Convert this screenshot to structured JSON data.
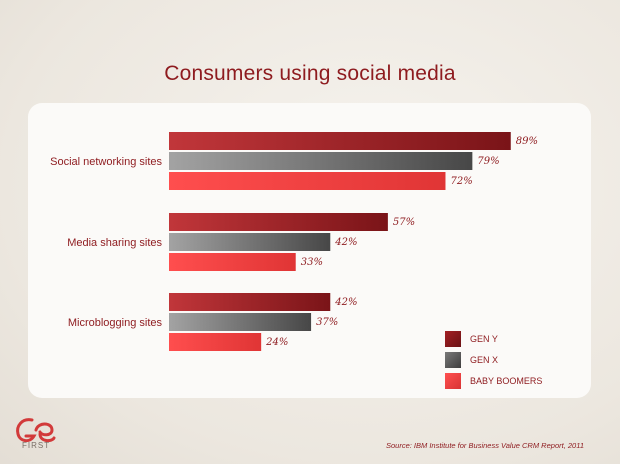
{
  "title": "Consumers using social media",
  "source": "Source: IBM Institute for Business Value CRM Report, 2011",
  "logo": {
    "text": "FIRST"
  },
  "chart_data": {
    "type": "bar",
    "orientation": "horizontal",
    "title": "Consumers using social media",
    "categories": [
      "Social networking sites",
      "Media sharing sites",
      "Microblogging sites"
    ],
    "series": [
      {
        "name": "GEN Y",
        "values": [
          89,
          57,
          42
        ],
        "labels": [
          "89%",
          "57%",
          "42%"
        ],
        "color": "#8e1b1f"
      },
      {
        "name": "GEN X",
        "values": [
          79,
          42,
          37
        ],
        "labels": [
          "79%",
          "42%",
          "37%"
        ],
        "color": "#5c5c5c"
      },
      {
        "name": "BABY BOOMERS",
        "values": [
          72,
          33,
          24
        ],
        "labels": [
          "72%",
          "33%",
          "24%"
        ],
        "color": "#ea3b3b"
      }
    ],
    "xlim": [
      0,
      100
    ],
    "grid": false,
    "legend_position": "bottom-right",
    "unit": "%"
  }
}
